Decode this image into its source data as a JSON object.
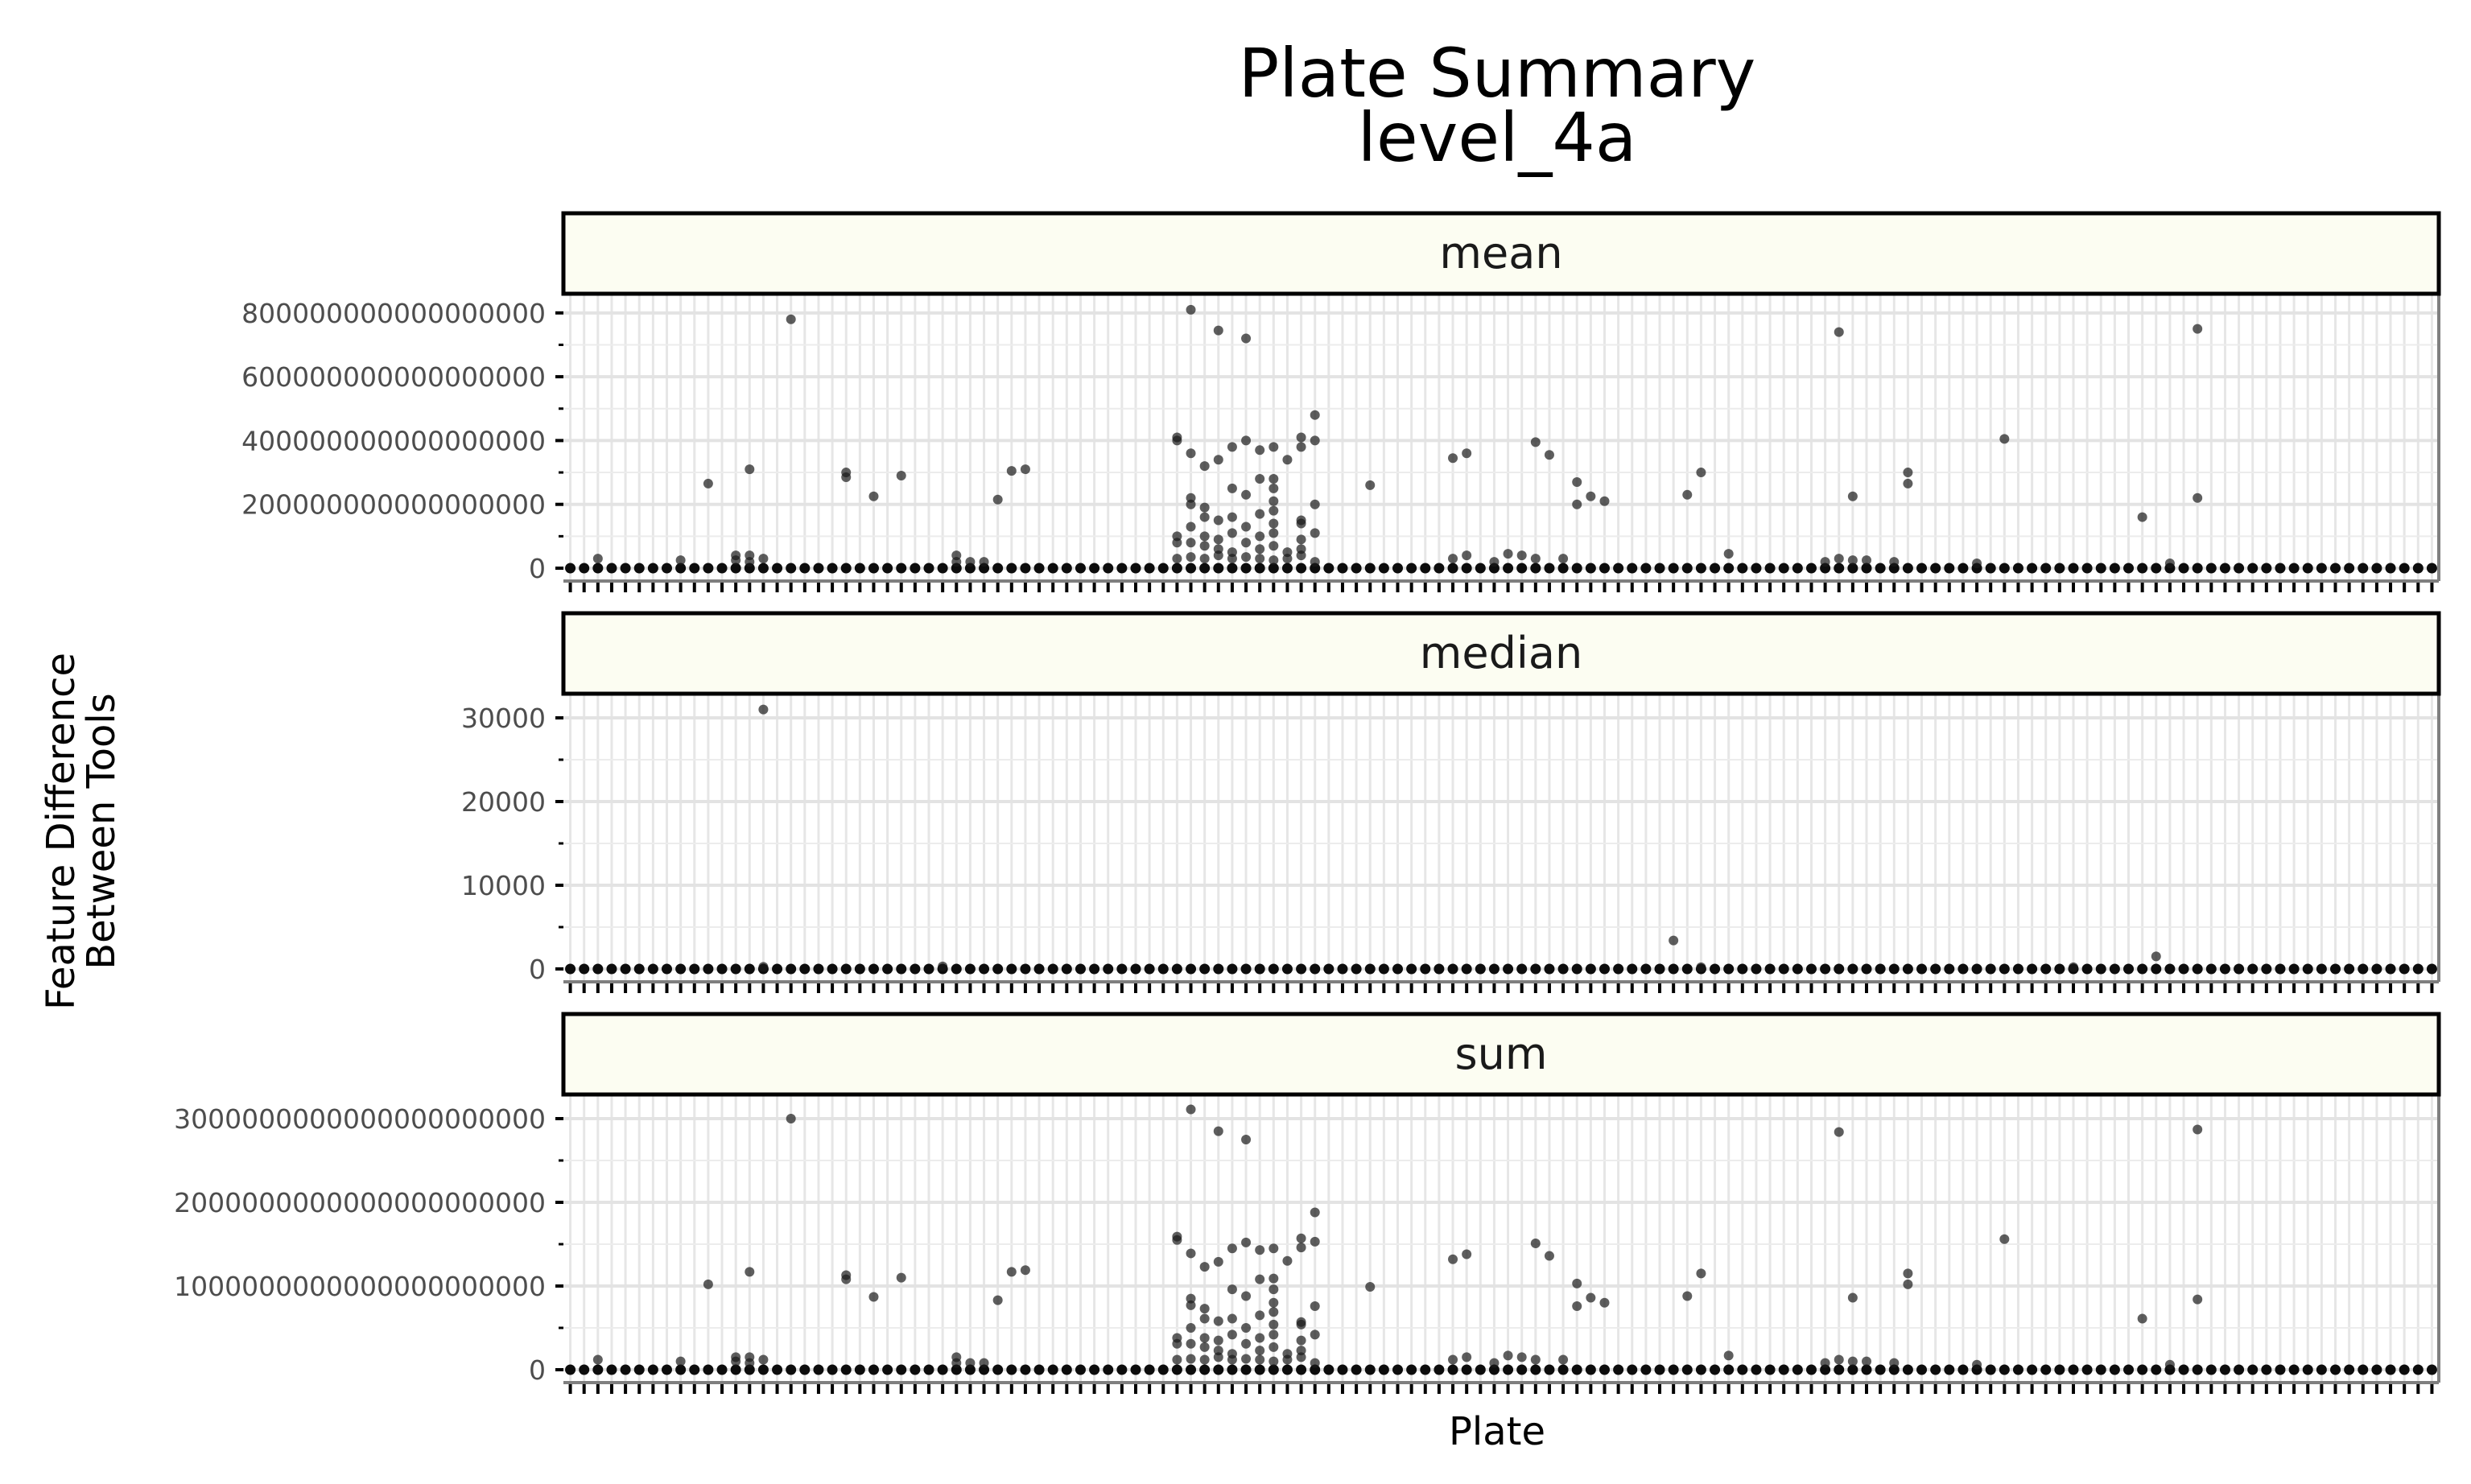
{
  "chart_data": {
    "type": "scatter",
    "title_line1": "Plate Summary",
    "title_line2": "level_4a",
    "xlabel": "Plate",
    "ylabel_line1": "Feature Difference",
    "ylabel_line2": "Between Tools",
    "grid": true,
    "x_tick_labels_shown": false,
    "num_plates": 136,
    "facets": [
      {
        "name": "mean",
        "ylim": [
          0,
          850000000000000000
        ],
        "y_ticks": [
          0,
          200000000000000000,
          400000000000000000,
          600000000000000000,
          800000000000000000
        ],
        "y_tick_labels": [
          "0",
          "200000000000000000",
          "400000000000000000",
          "600000000000000000",
          "800000000000000000"
        ],
        "points": [
          [
            16,
            780000000000000000
          ],
          [
            10,
            265000000000000000
          ],
          [
            13,
            310000000000000000
          ],
          [
            20,
            300000000000000000
          ],
          [
            20,
            285000000000000000
          ],
          [
            22,
            225000000000000000
          ],
          [
            24,
            290000000000000000
          ],
          [
            31,
            215000000000000000
          ],
          [
            32,
            305000000000000000
          ],
          [
            33,
            310000000000000000
          ],
          [
            45,
            810000000000000000
          ],
          [
            47,
            745000000000000000
          ],
          [
            49,
            720000000000000000
          ],
          [
            44,
            410000000000000000
          ],
          [
            44,
            400000000000000000
          ],
          [
            45,
            360000000000000000
          ],
          [
            46,
            320000000000000000
          ],
          [
            47,
            340000000000000000
          ],
          [
            48,
            380000000000000000
          ],
          [
            49,
            400000000000000000
          ],
          [
            50,
            370000000000000000
          ],
          [
            51,
            380000000000000000
          ],
          [
            53,
            410000000000000000
          ],
          [
            53,
            380000000000000000
          ],
          [
            54,
            400000000000000000
          ],
          [
            54,
            480000000000000000
          ],
          [
            52,
            340000000000000000
          ],
          [
            51,
            280000000000000000
          ],
          [
            50,
            280000000000000000
          ],
          [
            48,
            250000000000000000
          ],
          [
            49,
            230000000000000000
          ],
          [
            51,
            250000000000000000
          ],
          [
            51,
            210000000000000000
          ],
          [
            54,
            200000000000000000
          ],
          [
            45,
            220000000000000000
          ],
          [
            45,
            200000000000000000
          ],
          [
            46,
            190000000000000000
          ],
          [
            47,
            150000000000000000
          ],
          [
            48,
            160000000000000000
          ],
          [
            46,
            160000000000000000
          ],
          [
            49,
            130000000000000000
          ],
          [
            50,
            170000000000000000
          ],
          [
            50,
            100000000000000000
          ],
          [
            51,
            180000000000000000
          ],
          [
            51,
            140000000000000000
          ],
          [
            51,
            110000000000000000
          ],
          [
            53,
            150000000000000000
          ],
          [
            53,
            140000000000000000
          ],
          [
            53,
            90000000000000000
          ],
          [
            54,
            110000000000000000
          ],
          [
            44,
            100000000000000000
          ],
          [
            44,
            80000000000000000
          ],
          [
            45,
            80000000000000000
          ],
          [
            46,
            100000000000000000
          ],
          [
            47,
            90000000000000000
          ],
          [
            47,
            60000000000000000
          ],
          [
            48,
            110000000000000000
          ],
          [
            49,
            80000000000000000
          ],
          [
            50,
            60000000000000000
          ],
          [
            51,
            70000000000000000
          ],
          [
            52,
            50000000000000000
          ],
          [
            53,
            60000000000000000
          ],
          [
            45,
            130000000000000000
          ],
          [
            46,
            70000000000000000
          ],
          [
            48,
            50000000000000000
          ],
          [
            58,
            260000000000000000
          ],
          [
            64,
            345000000000000000
          ],
          [
            65,
            360000000000000000
          ],
          [
            70,
            395000000000000000
          ],
          [
            71,
            355000000000000000
          ],
          [
            73,
            270000000000000000
          ],
          [
            73,
            200000000000000000
          ],
          [
            74,
            225000000000000000
          ],
          [
            75,
            210000000000000000
          ],
          [
            81,
            230000000000000000
          ],
          [
            82,
            300000000000000000
          ],
          [
            92,
            740000000000000000
          ],
          [
            93,
            225000000000000000
          ],
          [
            97,
            300000000000000000
          ],
          [
            97,
            265000000000000000
          ],
          [
            104,
            405000000000000000
          ],
          [
            114,
            160000000000000000
          ],
          [
            118,
            750000000000000000
          ],
          [
            118,
            220000000000000000
          ],
          [
            2,
            30000000000000000
          ],
          [
            8,
            25000000000000000
          ],
          [
            12,
            40000000000000000
          ],
          [
            12,
            25000000000000000
          ],
          [
            13,
            40000000000000000
          ],
          [
            13,
            20000000000000000
          ],
          [
            14,
            30000000000000000
          ],
          [
            28,
            40000000000000000
          ],
          [
            28,
            20000000000000000
          ],
          [
            29,
            20000000000000000
          ],
          [
            30,
            20000000000000000
          ],
          [
            44,
            30000000000000000
          ],
          [
            45,
            35000000000000000
          ],
          [
            46,
            30000000000000000
          ],
          [
            47,
            40000000000000000
          ],
          [
            48,
            30000000000000000
          ],
          [
            49,
            35000000000000000
          ],
          [
            50,
            30000000000000000
          ],
          [
            51,
            25000000000000000
          ],
          [
            52,
            30000000000000000
          ],
          [
            53,
            40000000000000000
          ],
          [
            54,
            20000000000000000
          ],
          [
            64,
            30000000000000000
          ],
          [
            65,
            40000000000000000
          ],
          [
            67,
            20000000000000000
          ],
          [
            68,
            45000000000000000
          ],
          [
            69,
            40000000000000000
          ],
          [
            70,
            30000000000000000
          ],
          [
            72,
            30000000000000000
          ],
          [
            84,
            45000000000000000
          ],
          [
            91,
            20000000000000000
          ],
          [
            92,
            30000000000000000
          ],
          [
            93,
            25000000000000000
          ],
          [
            94,
            25000000000000000
          ],
          [
            96,
            20000000000000000
          ],
          [
            102,
            15000000000000000
          ],
          [
            116,
            15000000000000000
          ]
        ]
      },
      {
        "name": "median",
        "ylim": [
          0,
          32500
        ],
        "y_ticks": [
          0,
          10000,
          20000,
          30000
        ],
        "y_tick_labels": [
          "0",
          "10000",
          "20000",
          "30000"
        ],
        "points": [
          [
            14,
            31000
          ],
          [
            80,
            3400
          ],
          [
            115,
            1500
          ],
          [
            27,
            300
          ],
          [
            14,
            250
          ],
          [
            82,
            200
          ],
          [
            109,
            200
          ]
        ]
      },
      {
        "name": "sum",
        "ylim": [
          0,
          3250000000000000000000
        ],
        "y_ticks": [
          0,
          1000000000000000000000,
          2000000000000000000000,
          3000000000000000000000
        ],
        "y_tick_labels": [
          "0",
          "1000000000000000000000",
          "2000000000000000000000",
          "3000000000000000000000"
        ],
        "points": [
          [
            16,
            3000000000000000000000
          ],
          [
            10,
            1020000000000000000000
          ],
          [
            13,
            1170000000000000000000
          ],
          [
            20,
            1130000000000000000000
          ],
          [
            20,
            1080000000000000000000
          ],
          [
            22,
            870000000000000000000
          ],
          [
            24,
            1100000000000000000000
          ],
          [
            31,
            830000000000000000000
          ],
          [
            32,
            1170000000000000000000
          ],
          [
            33,
            1190000000000000000000
          ],
          [
            45,
            3110000000000000000000
          ],
          [
            47,
            2850000000000000000000
          ],
          [
            49,
            2750000000000000000000
          ],
          [
            44,
            1590000000000000000000
          ],
          [
            44,
            1550000000000000000000
          ],
          [
            45,
            1390000000000000000000
          ],
          [
            46,
            1230000000000000000000
          ],
          [
            47,
            1290000000000000000000
          ],
          [
            48,
            1450000000000000000000
          ],
          [
            49,
            1520000000000000000000
          ],
          [
            50,
            1430000000000000000000
          ],
          [
            51,
            1450000000000000000000
          ],
          [
            53,
            1570000000000000000000
          ],
          [
            53,
            1460000000000000000000
          ],
          [
            54,
            1530000000000000000000
          ],
          [
            54,
            1880000000000000000000
          ],
          [
            52,
            1300000000000000000000
          ],
          [
            51,
            1090000000000000000000
          ],
          [
            50,
            1080000000000000000000
          ],
          [
            48,
            960000000000000000000
          ],
          [
            49,
            880000000000000000000
          ],
          [
            51,
            960000000000000000000
          ],
          [
            51,
            800000000000000000000
          ],
          [
            54,
            760000000000000000000
          ],
          [
            45,
            850000000000000000000
          ],
          [
            45,
            770000000000000000000
          ],
          [
            46,
            730000000000000000000
          ],
          [
            47,
            580000000000000000000
          ],
          [
            48,
            610000000000000000000
          ],
          [
            46,
            610000000000000000000
          ],
          [
            49,
            500000000000000000000
          ],
          [
            50,
            650000000000000000000
          ],
          [
            50,
            380000000000000000000
          ],
          [
            51,
            690000000000000000000
          ],
          [
            51,
            540000000000000000000
          ],
          [
            51,
            420000000000000000000
          ],
          [
            53,
            570000000000000000000
          ],
          [
            53,
            540000000000000000000
          ],
          [
            53,
            350000000000000000000
          ],
          [
            54,
            420000000000000000000
          ],
          [
            44,
            380000000000000000000
          ],
          [
            44,
            310000000000000000000
          ],
          [
            45,
            310000000000000000000
          ],
          [
            46,
            380000000000000000000
          ],
          [
            47,
            350000000000000000000
          ],
          [
            47,
            230000000000000000000
          ],
          [
            48,
            420000000000000000000
          ],
          [
            49,
            310000000000000000000
          ],
          [
            50,
            230000000000000000000
          ],
          [
            51,
            270000000000000000000
          ],
          [
            52,
            190000000000000000000
          ],
          [
            53,
            230000000000000000000
          ],
          [
            45,
            500000000000000000000
          ],
          [
            46,
            270000000000000000000
          ],
          [
            48,
            190000000000000000000
          ],
          [
            58,
            990000000000000000000
          ],
          [
            64,
            1320000000000000000000
          ],
          [
            65,
            1380000000000000000000
          ],
          [
            70,
            1510000000000000000000
          ],
          [
            71,
            1360000000000000000000
          ],
          [
            73,
            1030000000000000000000
          ],
          [
            73,
            760000000000000000000
          ],
          [
            74,
            860000000000000000000
          ],
          [
            75,
            800000000000000000000
          ],
          [
            81,
            880000000000000000000
          ],
          [
            82,
            1150000000000000000000
          ],
          [
            92,
            2840000000000000000000
          ],
          [
            93,
            860000000000000000000
          ],
          [
            97,
            1150000000000000000000
          ],
          [
            97,
            1020000000000000000000
          ],
          [
            104,
            1560000000000000000000
          ],
          [
            114,
            610000000000000000000
          ],
          [
            118,
            2870000000000000000000
          ],
          [
            118,
            840000000000000000000
          ],
          [
            2,
            120000000000000000000
          ],
          [
            8,
            100000000000000000000
          ],
          [
            12,
            150000000000000000000
          ],
          [
            12,
            100000000000000000000
          ],
          [
            13,
            150000000000000000000
          ],
          [
            13,
            80000000000000000000
          ],
          [
            14,
            120000000000000000000
          ],
          [
            28,
            150000000000000000000
          ],
          [
            28,
            80000000000000000000
          ],
          [
            29,
            80000000000000000000
          ],
          [
            30,
            80000000000000000000
          ],
          [
            44,
            120000000000000000000
          ],
          [
            45,
            130000000000000000000
          ],
          [
            46,
            120000000000000000000
          ],
          [
            47,
            150000000000000000000
          ],
          [
            48,
            120000000000000000000
          ],
          [
            49,
            130000000000000000000
          ],
          [
            50,
            120000000000000000000
          ],
          [
            51,
            100000000000000000000
          ],
          [
            52,
            120000000000000000000
          ],
          [
            53,
            150000000000000000000
          ],
          [
            54,
            80000000000000000000
          ],
          [
            64,
            120000000000000000000
          ],
          [
            65,
            150000000000000000000
          ],
          [
            67,
            80000000000000000000
          ],
          [
            68,
            170000000000000000000
          ],
          [
            69,
            150000000000000000000
          ],
          [
            70,
            120000000000000000000
          ],
          [
            72,
            120000000000000000000
          ],
          [
            84,
            170000000000000000000
          ],
          [
            91,
            80000000000000000000
          ],
          [
            92,
            120000000000000000000
          ],
          [
            93,
            100000000000000000000
          ],
          [
            94,
            100000000000000000000
          ],
          [
            96,
            80000000000000000000
          ],
          [
            102,
            60000000000000000000
          ],
          [
            116,
            60000000000000000000
          ]
        ]
      }
    ]
  }
}
